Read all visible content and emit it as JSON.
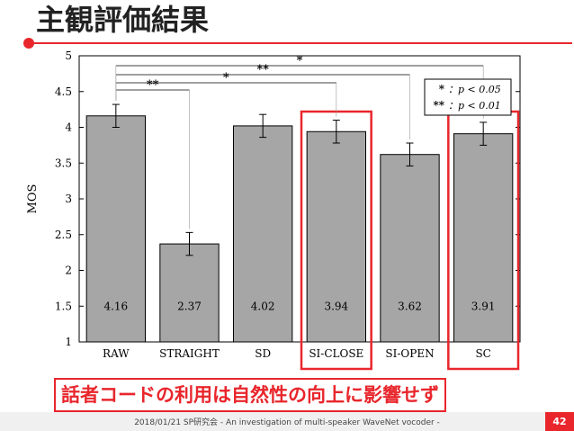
{
  "slide": {
    "title": "主観評価結果",
    "conclusion": "話者コードの利用は自然性の向上に影響せず",
    "footer": "2018/01/21 SP研究会 - An investigation of multi-speaker WaveNet vocoder -",
    "page_number": "42",
    "accent_color": "#e8262c"
  },
  "chart_data": {
    "type": "bar",
    "ylabel": "MOS",
    "xlabel": "",
    "ylim": [
      1,
      5
    ],
    "yticks": [
      "1",
      "1.5",
      "2",
      "2.5",
      "3",
      "3.5",
      "4",
      "4.5",
      "5"
    ],
    "grid": false,
    "categories": [
      "RAW",
      "STRAIGHT",
      "SD",
      "SI-CLOSE",
      "SI-OPEN",
      "SC"
    ],
    "values": [
      4.16,
      2.37,
      4.02,
      3.94,
      3.62,
      3.91
    ],
    "value_labels": [
      "4.16",
      "2.37",
      "4.02",
      "3.94",
      "3.62",
      "3.91"
    ],
    "error": [
      0.16,
      0.16,
      0.16,
      0.16,
      0.16,
      0.16
    ],
    "bar_color": "#a6a6a6",
    "highlighted": [
      "SI-CLOSE",
      "SC"
    ],
    "significance": [
      {
        "from": "RAW",
        "to": "STRAIGHT",
        "label": "**"
      },
      {
        "from": "RAW",
        "to": "SI-CLOSE",
        "label": "*"
      },
      {
        "from": "RAW",
        "to": "SI-OPEN",
        "label": "**"
      },
      {
        "from": "RAW",
        "to": "SC",
        "label": "*"
      }
    ],
    "legend": {
      "position": "top-right",
      "entries": [
        {
          "mark": "*",
          "text": "：p < 0.05"
        },
        {
          "mark": "**",
          "text": "：p < 0.01"
        }
      ]
    }
  }
}
